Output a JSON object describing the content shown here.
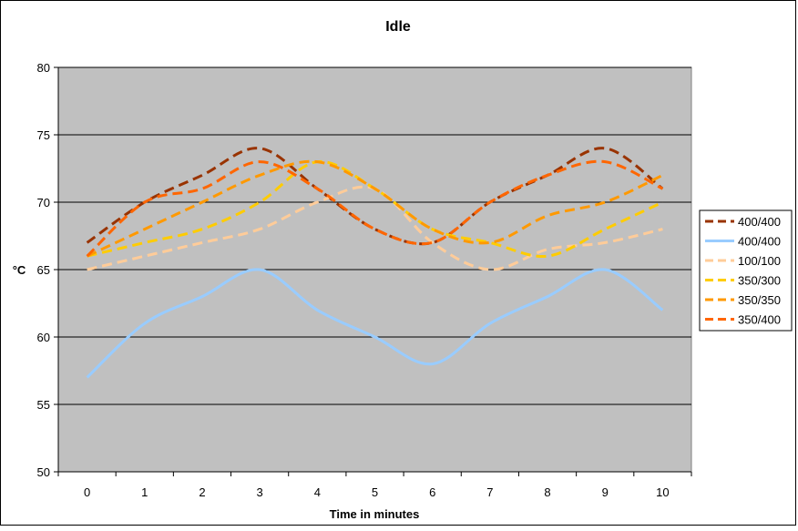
{
  "chart_data": {
    "type": "line",
    "title": "Idle",
    "xlabel": "Time in minutes",
    "ylabel": "°C",
    "x": [
      0,
      1,
      2,
      3,
      4,
      5,
      6,
      7,
      8,
      9,
      10
    ],
    "x_tick_labels": [
      "0",
      "1",
      "2",
      "3",
      "4",
      "5",
      "6",
      "7",
      "8",
      "9",
      "10"
    ],
    "ylim": [
      50,
      80
    ],
    "y_ticks": [
      50,
      55,
      60,
      65,
      70,
      75,
      80
    ],
    "y_tick_labels": [
      "50",
      "55",
      "60",
      "65",
      "70",
      "75",
      "80"
    ],
    "grid": "horizontal",
    "plot_background": "#c0c0c0",
    "legend_position": "right",
    "series": [
      {
        "name": "400/400",
        "color": "#993300",
        "dashed": true,
        "values": [
          67,
          70,
          72,
          74,
          71,
          68,
          67,
          70,
          72,
          74,
          71
        ]
      },
      {
        "name": "400/400",
        "color": "#99ccff",
        "dashed": false,
        "values": [
          57,
          61,
          63,
          65,
          62,
          60,
          58,
          61,
          63,
          65,
          62
        ]
      },
      {
        "name": "100/100",
        "color": "#ffcc99",
        "dashed": true,
        "values": [
          65,
          66,
          67,
          68,
          70,
          71,
          67,
          65,
          66.5,
          67,
          68
        ]
      },
      {
        "name": "350/300",
        "color": "#ffcc00",
        "dashed": true,
        "values": [
          66,
          67,
          68,
          70,
          73,
          71,
          68,
          67,
          66,
          68,
          70
        ]
      },
      {
        "name": "350/350",
        "color": "#ff9900",
        "dashed": true,
        "values": [
          66,
          68,
          70,
          72,
          73,
          71,
          68,
          67,
          69,
          70,
          72
        ]
      },
      {
        "name": "350/400",
        "color": "#ff6600",
        "dashed": true,
        "values": [
          66,
          70,
          71,
          73,
          71,
          68,
          67,
          70,
          72,
          73,
          71
        ]
      }
    ]
  }
}
